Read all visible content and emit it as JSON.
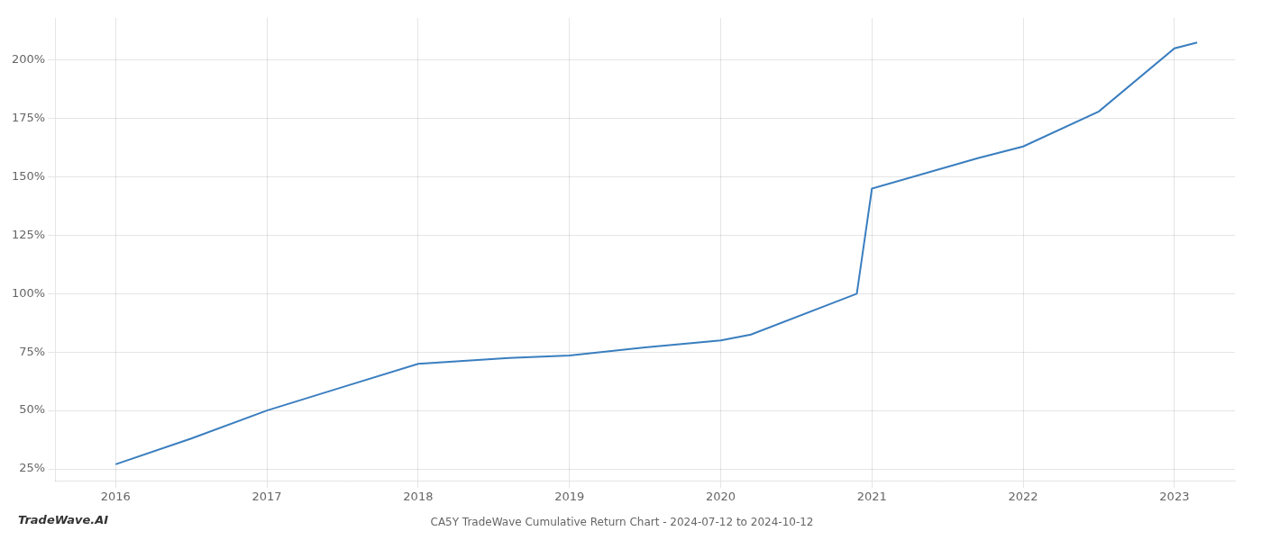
{
  "chart_data": {
    "type": "line",
    "title": "CA5Y TradeWave Cumulative Return Chart - 2024-07-12 to 2024-10-12",
    "annotations": [
      "TradeWave.AI"
    ],
    "x": [
      2016.0,
      2016.5,
      2017.0,
      2017.5,
      2018.0,
      2018.6,
      2019.0,
      2019.5,
      2020.0,
      2020.2,
      2020.9,
      2021.0,
      2021.7,
      2022.0,
      2022.5,
      2023.0,
      2023.15
    ],
    "values": [
      27.0,
      38.0,
      50.0,
      60.0,
      70.0,
      72.5,
      73.5,
      77.0,
      80.0,
      82.5,
      100.0,
      145.0,
      158.0,
      163.0,
      178.0,
      205.0,
      207.5
    ],
    "color": "#3a7ebf",
    "xlim": [
      2015.6,
      2023.4
    ],
    "xticks": [
      2016,
      2017,
      2018,
      2019,
      2020,
      2021,
      2022,
      2023
    ],
    "ylim": [
      20,
      218
    ],
    "yticks": [
      {
        "value": 25,
        "label": "25%"
      },
      {
        "value": 50,
        "label": "50%"
      },
      {
        "value": 75,
        "label": "75%"
      },
      {
        "value": 100,
        "label": "100%"
      },
      {
        "value": 125,
        "label": "125%"
      },
      {
        "value": 150,
        "label": "150%"
      },
      {
        "value": 175,
        "label": "175%"
      },
      {
        "value": 200,
        "label": "200%"
      }
    ],
    "grid": true
  }
}
